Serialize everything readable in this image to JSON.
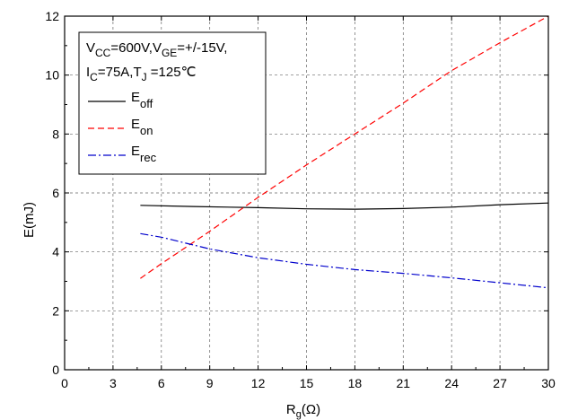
{
  "chart_data": {
    "type": "line",
    "xlabel": {
      "main": "R",
      "sub": "g",
      "unit": "(Ω)"
    },
    "ylabel": "E(mJ)",
    "xlim": [
      0,
      30
    ],
    "ylim": [
      0,
      12
    ],
    "xticks": [
      0,
      3,
      6,
      9,
      12,
      15,
      18,
      21,
      24,
      27,
      30
    ],
    "yticks": [
      0,
      2,
      4,
      6,
      8,
      10,
      12
    ],
    "grid": true,
    "legend_position": "top-left",
    "conditions": {
      "line1": [
        {
          "text": "V",
          "sub": false
        },
        {
          "text": "CC",
          "sub": true
        },
        {
          "text": "=600V,V",
          "sub": false
        },
        {
          "text": "GE",
          "sub": true
        },
        {
          "text": "=+/-15V,",
          "sub": false
        }
      ],
      "line2": [
        {
          "text": "I",
          "sub": false
        },
        {
          "text": "C",
          "sub": true
        },
        {
          "text": "=75A,T",
          "sub": false
        },
        {
          "text": "J",
          "sub": true
        },
        {
          "text": " =125℃",
          "sub": false
        }
      ]
    },
    "series": [
      {
        "main": "E",
        "sub": "off",
        "color": "#000000",
        "dash": "solid",
        "x": [
          4.7,
          8,
          12,
          15,
          18,
          21,
          24,
          27,
          30
        ],
        "y": [
          5.58,
          5.54,
          5.5,
          5.46,
          5.45,
          5.47,
          5.52,
          5.6,
          5.66
        ]
      },
      {
        "main": "E",
        "sub": "on",
        "color": "#ff0000",
        "dash": "dashed",
        "x": [
          4.7,
          6,
          9,
          12,
          15,
          18,
          21,
          24,
          27,
          30
        ],
        "y": [
          3.1,
          3.6,
          4.7,
          5.85,
          6.95,
          8.0,
          9.05,
          10.15,
          11.1,
          12.0
        ]
      },
      {
        "main": "E",
        "sub": "rec",
        "color": "#0000cc",
        "dash": "dashdot",
        "x": [
          4.7,
          6,
          9,
          12,
          15,
          18,
          21,
          24,
          27,
          30
        ],
        "y": [
          4.62,
          4.5,
          4.1,
          3.8,
          3.58,
          3.4,
          3.27,
          3.12,
          2.95,
          2.78
        ]
      }
    ]
  }
}
